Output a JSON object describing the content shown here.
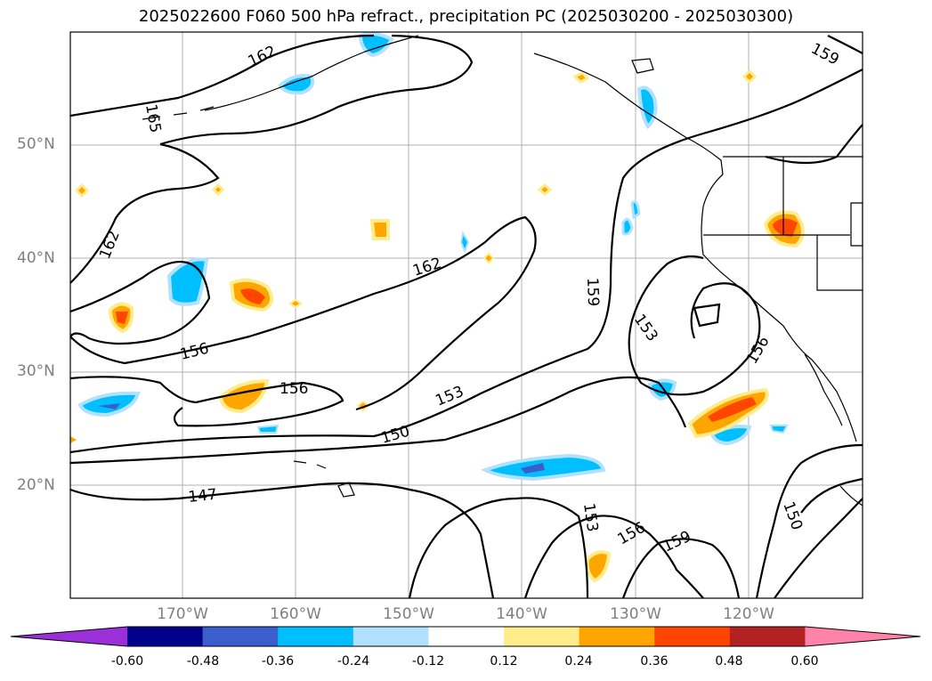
{
  "title": "2025022600 F060 500 hPa refract., precipitation PC (2025030200 - 2025030300)",
  "lat_labels": [
    "50°N",
    "40°N",
    "30°N",
    "20°N"
  ],
  "lon_labels": [
    "170°W",
    "160°W",
    "150°W",
    "140°W",
    "130°W",
    "120°W"
  ],
  "contour_labels": [
    "165",
    "162",
    "162",
    "162",
    "159",
    "159",
    "159",
    "156",
    "156",
    "156",
    "156",
    "153",
    "153",
    "153",
    "150",
    "150",
    "147"
  ],
  "colorbar": {
    "labels": [
      "-0.60",
      "-0.48",
      "-0.36",
      "-0.24",
      "-0.12",
      "0.12",
      "0.24",
      "0.36",
      "0.48",
      "0.60"
    ],
    "colors": [
      "#9b30d9",
      "#00008b",
      "#3a5fcd",
      "#00bfff",
      "#b0e2ff",
      "#ffffff",
      "#ffec8b",
      "#ffa500",
      "#ff4500",
      "#b22222",
      "#ff82ab"
    ]
  }
}
